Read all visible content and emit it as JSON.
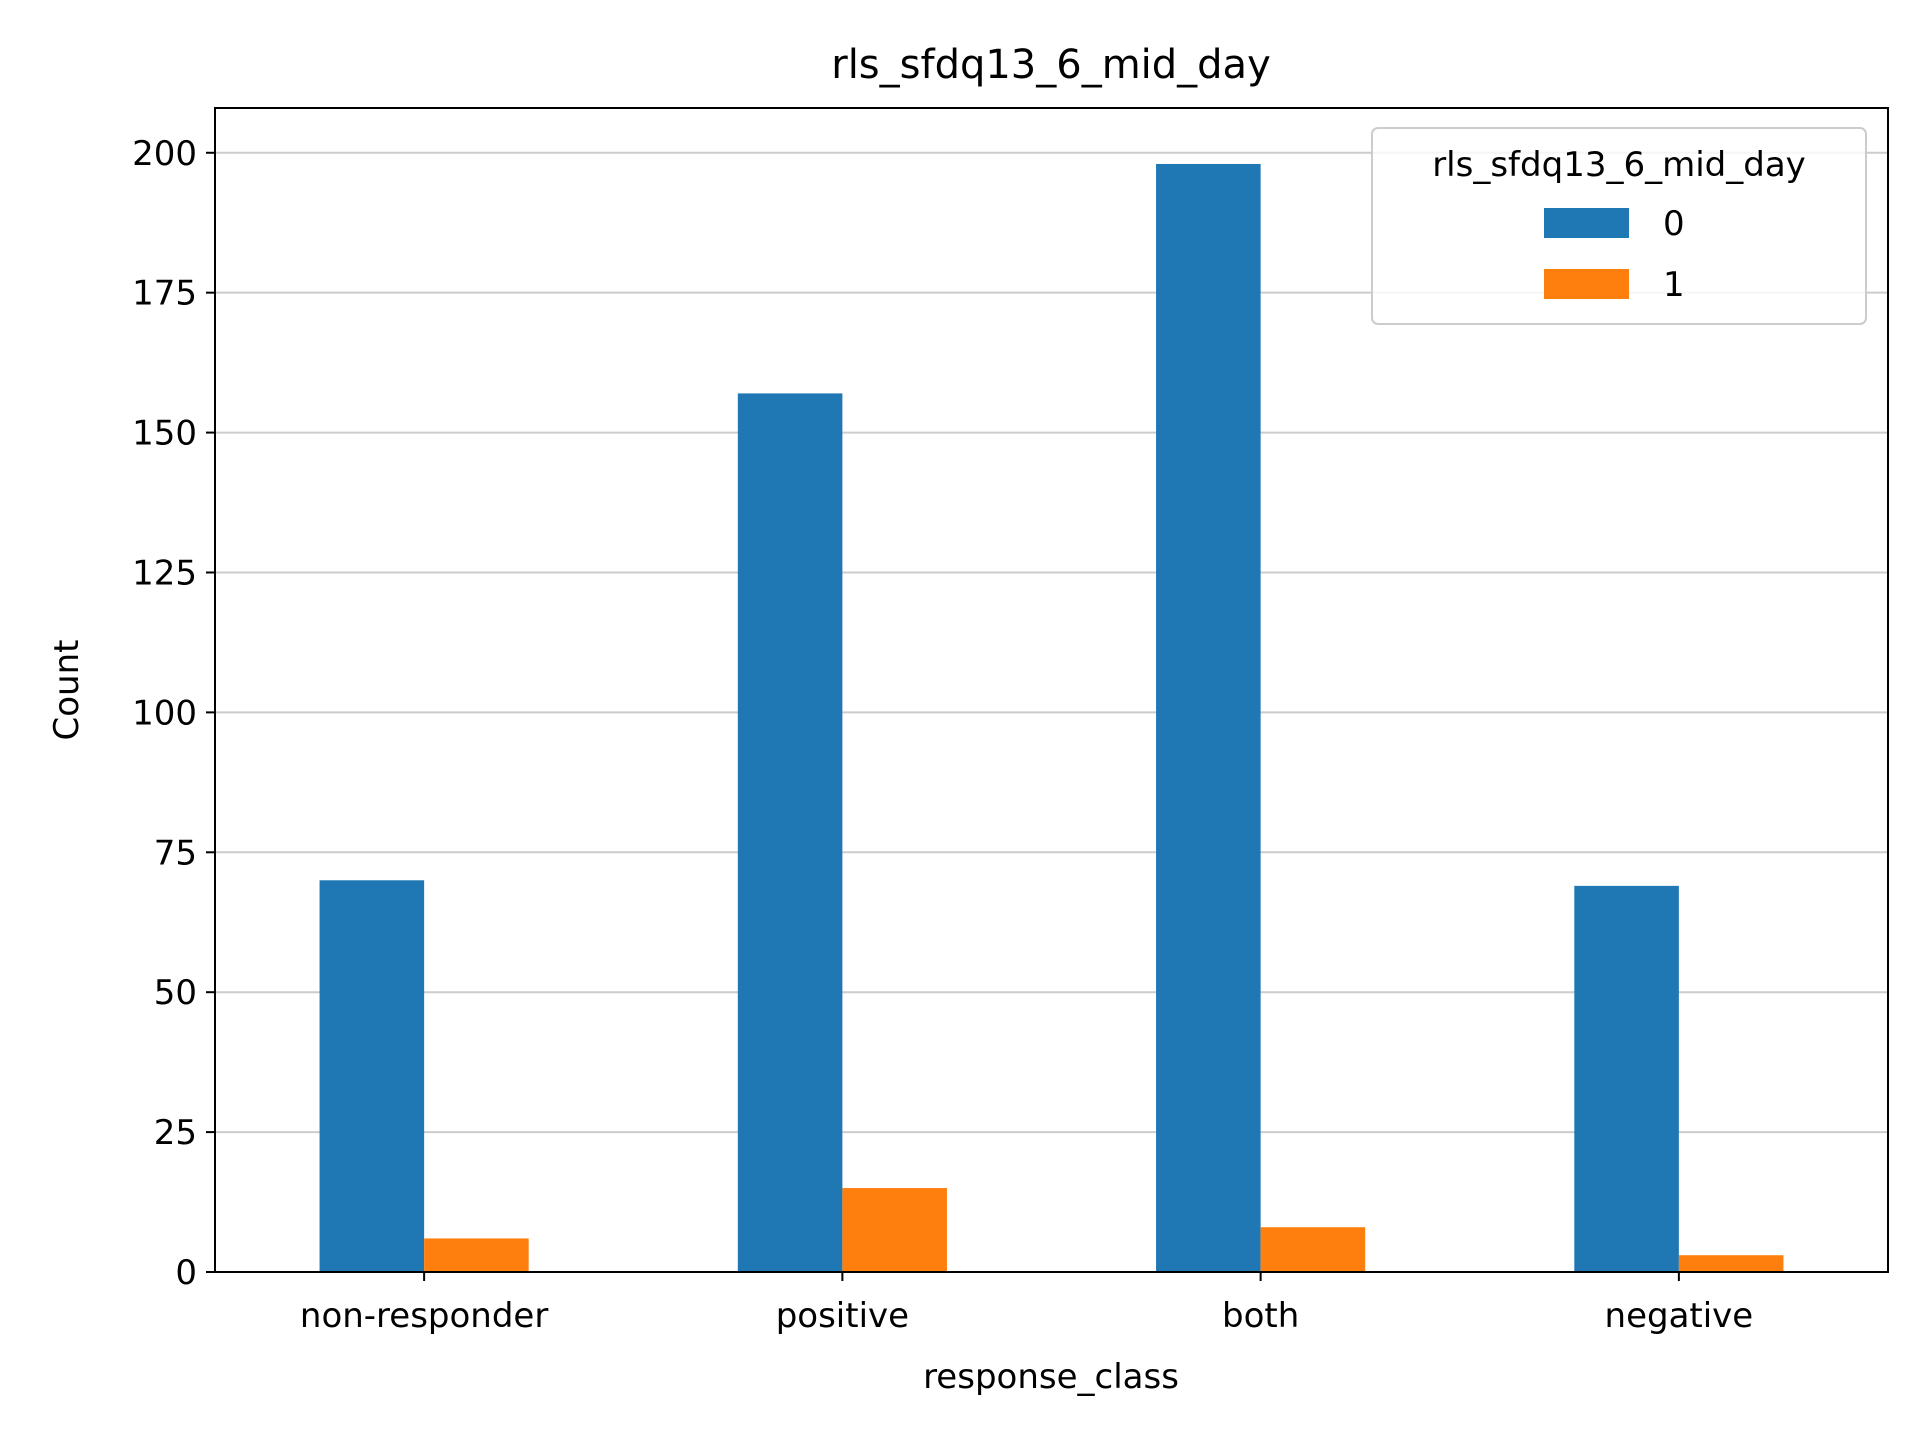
{
  "chart_data": {
    "type": "bar",
    "title": "rls_sfdq13_6_mid_day",
    "xlabel": "response_class",
    "ylabel": "Count",
    "categories": [
      "non-responder",
      "positive",
      "both",
      "negative"
    ],
    "series": [
      {
        "name": "0",
        "color": "#1f77b4",
        "values": [
          70,
          157,
          198,
          69
        ]
      },
      {
        "name": "1",
        "color": "#ff7f0e",
        "values": [
          6,
          15,
          8,
          3
        ]
      }
    ],
    "ylim": [
      0,
      208
    ],
    "yticks": [
      0,
      25,
      50,
      75,
      100,
      125,
      150,
      175,
      200
    ],
    "grid": "y",
    "legend": {
      "title": "rls_sfdq13_6_mid_day",
      "position": "top-right"
    }
  }
}
